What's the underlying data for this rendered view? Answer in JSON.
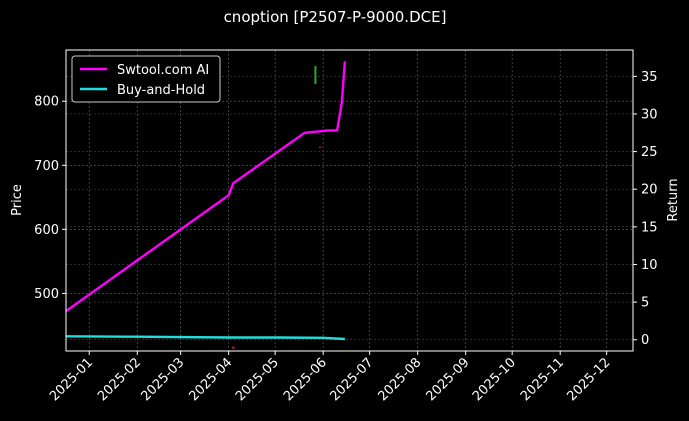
{
  "chart_data": {
    "type": "line",
    "title": "cnoption [P2507-P-9000.DCE]",
    "xlabel": "",
    "ylabel": "Price",
    "y2label": "Return",
    "x_ticks": [
      "2025-01",
      "2025-02",
      "2025-03",
      "2025-04",
      "2025-05",
      "2025-06",
      "2025-07",
      "2025-08",
      "2025-09",
      "2025-10",
      "2025-11",
      "2025-12"
    ],
    "xlim": [
      "2024-12-17",
      "2025-12-18"
    ],
    "ylim": [
      410,
      880
    ],
    "y_ticks": [
      500,
      600,
      700,
      800
    ],
    "y2lim": [
      -1.5,
      38.5
    ],
    "y2_ticks": [
      0,
      5,
      10,
      15,
      20,
      25,
      30,
      35
    ],
    "grid": true,
    "legend_position": "top-left",
    "series": [
      {
        "name": "Swtool.com AI",
        "color": "#ff00ff",
        "axis": "right",
        "points": [
          [
            "2024-12-17",
            3.8
          ],
          [
            "2025-04-01",
            19.2
          ],
          [
            "2025-04-04",
            20.8
          ],
          [
            "2025-05-20",
            27.5
          ],
          [
            "2025-05-30",
            27.7
          ],
          [
            "2025-06-04",
            27.8
          ],
          [
            "2025-06-10",
            27.8
          ],
          [
            "2025-06-13",
            31.5
          ],
          [
            "2025-06-15",
            37.0
          ]
        ]
      },
      {
        "name": "Buy-and-Hold",
        "color": "#22dddd",
        "axis": "right",
        "points": [
          [
            "2024-12-17",
            0.45
          ],
          [
            "2025-02-01",
            0.4
          ],
          [
            "2025-04-01",
            0.3
          ],
          [
            "2025-05-01",
            0.3
          ],
          [
            "2025-06-01",
            0.25
          ],
          [
            "2025-06-15",
            0.1
          ]
        ]
      }
    ],
    "candles": [
      {
        "date": "2025-05-27",
        "open": 855,
        "close": 827,
        "color": "#22aa22"
      },
      {
        "date": "2025-05-30",
        "open": 729,
        "close": 727,
        "color": "#cc2222"
      },
      {
        "date": "2025-04-04",
        "open": 417,
        "close": 413,
        "color": "#cc2222"
      }
    ]
  }
}
